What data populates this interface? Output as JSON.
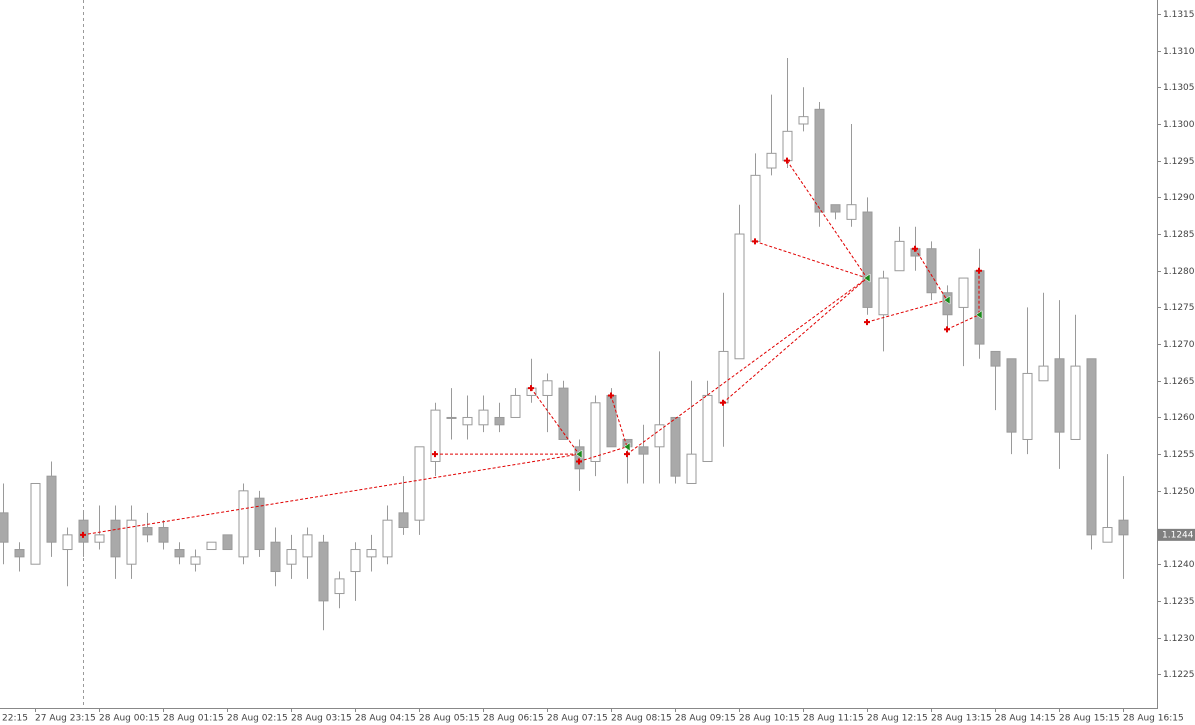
{
  "chart_data": {
    "type": "candlestick",
    "categories": [
      "22:15",
      null,
      null,
      null,
      "27 Aug 23:15",
      null,
      null,
      null,
      "28 Aug 00:15",
      null,
      null,
      null,
      "28 Aug 01:15",
      null,
      null,
      null,
      "28 Aug 02:15",
      null,
      null,
      null,
      "28 Aug 03:15",
      null,
      null,
      null,
      "28 Aug 04:15",
      null,
      null,
      null,
      "28 Aug 05:15",
      null,
      null,
      null,
      "28 Aug 06:15",
      null,
      null,
      null,
      "28 Aug 07:15",
      null,
      null,
      null,
      "28 Aug 08:15",
      null,
      null,
      null,
      "28 Aug 09:15",
      null,
      null,
      null,
      "28 Aug 10:15",
      null,
      null,
      null,
      "28 Aug 11:15",
      null,
      null,
      null,
      "28 Aug 12:15",
      null,
      null,
      null,
      "28 Aug 13:15",
      null,
      null,
      null,
      "28 Aug 14:15",
      null,
      null,
      null,
      "28 Aug 15:15",
      null,
      null,
      null,
      "28 Aug 16:15"
    ],
    "open": [
      null,
      null,
      1.1247,
      1.1242,
      1.124,
      1.1252,
      1.1242,
      1.1246,
      1.1243,
      1.1246,
      1.124,
      1.1245,
      1.1245,
      1.1242,
      1.124,
      1.1242,
      1.1244,
      1.1241,
      1.1249,
      1.1243,
      1.124,
      1.1241,
      1.1243,
      1.1236,
      1.1239,
      1.1241,
      1.1241,
      1.1247,
      1.1246,
      1.1254,
      1.126,
      1.1259,
      1.1259,
      1.126,
      1.126,
      1.1263,
      1.1263,
      1.1264,
      1.1256,
      1.1254,
      1.1263,
      1.1257,
      1.1256,
      1.1256,
      1.126,
      1.1251,
      1.1254,
      1.1262,
      1.1268,
      1.1284,
      1.1294,
      1.1295,
      1.13,
      1.1302,
      1.1289,
      1.1287,
      1.1288,
      1.1274,
      1.128,
      1.1283,
      1.1283,
      1.1277,
      1.1275,
      1.128,
      1.1269,
      1.1268,
      1.1257,
      1.1265,
      1.1268,
      1.1257,
      1.1268,
      1.1243,
      1.1246
    ],
    "high": [
      null,
      null,
      1.1251,
      1.1243,
      1.1251,
      1.1254,
      1.1245,
      1.1247,
      1.1248,
      1.1248,
      1.1248,
      1.1247,
      1.1246,
      1.1243,
      1.1242,
      1.1243,
      1.1244,
      1.1251,
      1.125,
      1.1245,
      1.1244,
      1.1245,
      1.1244,
      1.1239,
      1.1243,
      1.1244,
      1.1248,
      1.1252,
      1.1256,
      1.1262,
      1.1264,
      1.1263,
      1.1263,
      1.1262,
      1.1264,
      1.1268,
      1.1266,
      1.1265,
      1.1257,
      1.1263,
      1.1264,
      1.1257,
      1.1259,
      1.1269,
      1.126,
      1.1265,
      1.1265,
      1.1277,
      1.1289,
      1.1296,
      1.1304,
      1.1309,
      1.1305,
      1.1303,
      1.1289,
      1.13,
      1.129,
      1.128,
      1.1286,
      1.1286,
      1.1284,
      1.1278,
      1.1279,
      1.1283,
      1.1269,
      1.1268,
      1.1275,
      1.1277,
      1.1276,
      1.1274,
      1.1268,
      1.1255,
      1.1252
    ],
    "low": [
      null,
      null,
      1.124,
      1.1239,
      1.124,
      1.1241,
      1.1237,
      1.1241,
      1.1242,
      1.1238,
      1.1238,
      1.1243,
      1.1242,
      1.124,
      1.1239,
      1.1242,
      1.1242,
      1.124,
      1.1241,
      1.1237,
      1.1238,
      1.1238,
      1.1231,
      1.1234,
      1.1235,
      1.1239,
      1.124,
      1.1244,
      1.1244,
      1.1252,
      1.1257,
      1.1257,
      1.1258,
      1.1258,
      1.126,
      1.1262,
      1.1258,
      1.1257,
      1.125,
      1.1252,
      1.1256,
      1.1251,
      1.1251,
      1.1251,
      1.1251,
      1.1251,
      1.1254,
      1.1256,
      1.1268,
      1.1284,
      1.1293,
      1.1294,
      1.1299,
      1.1286,
      1.1287,
      1.1286,
      1.1274,
      1.1269,
      1.128,
      1.128,
      1.1276,
      1.1272,
      1.1267,
      1.1268,
      1.1261,
      1.1255,
      1.1255,
      1.1265,
      1.1253,
      1.1257,
      1.1242,
      1.1243,
      1.1238
    ],
    "close": [
      null,
      null,
      1.1243,
      1.1241,
      1.1251,
      1.1243,
      1.1244,
      1.1243,
      1.1244,
      1.1241,
      1.1246,
      1.1244,
      1.1243,
      1.1241,
      1.1241,
      1.1243,
      1.1242,
      1.125,
      1.1242,
      1.1239,
      1.1242,
      1.1244,
      1.1235,
      1.1238,
      1.1242,
      1.1242,
      1.1246,
      1.1245,
      1.1256,
      1.1261,
      1.126,
      1.126,
      1.1261,
      1.1259,
      1.1263,
      1.1264,
      1.1265,
      1.1257,
      1.1253,
      1.1262,
      1.1256,
      1.1256,
      1.1255,
      1.1259,
      1.1252,
      1.1255,
      1.1263,
      1.1269,
      1.1285,
      1.1293,
      1.1296,
      1.1299,
      1.1301,
      1.1288,
      1.1288,
      1.1289,
      1.1275,
      1.1279,
      1.1284,
      1.1282,
      1.1277,
      1.1274,
      1.1279,
      1.127,
      1.1267,
      1.1258,
      1.1266,
      1.1267,
      1.1258,
      1.1267,
      1.1244,
      1.1245,
      1.1244
    ],
    "up_color": "#ffffff",
    "down_color": "#a9a9a9",
    "wick_color": "#9a9a9a",
    "trade_color": "#e00000",
    "exit_color": "#1a8a1a",
    "trades": [
      {
        "open_index": 7,
        "open_price": 1.1244,
        "close_index": 38,
        "close_price": 1.1255
      },
      {
        "open_index": 29,
        "open_price": 1.1255,
        "close_index": 38,
        "close_price": 1.1255
      },
      {
        "open_index": 35,
        "open_price": 1.1264,
        "close_index": 38,
        "close_price": 1.1255
      },
      {
        "open_index": 38,
        "open_price": 1.1254,
        "close_index": 41,
        "close_price": 1.1256
      },
      {
        "open_index": 40,
        "open_price": 1.1263,
        "close_index": 41,
        "close_price": 1.1256
      },
      {
        "open_index": 41,
        "open_price": 1.1255,
        "close_index": 56,
        "close_price": 1.1279
      },
      {
        "open_index": 47,
        "open_price": 1.1262,
        "close_index": 56,
        "close_price": 1.1279
      },
      {
        "open_index": 49,
        "open_price": 1.1284,
        "close_index": 56,
        "close_price": 1.1279
      },
      {
        "open_index": 51,
        "open_price": 1.1295,
        "close_index": 56,
        "close_price": 1.1279
      },
      {
        "open_index": 56,
        "open_price": 1.1273,
        "close_index": 61,
        "close_price": 1.1276
      },
      {
        "open_index": 59,
        "open_price": 1.1283,
        "close_index": 61,
        "close_price": 1.1276
      },
      {
        "open_index": 61,
        "open_price": 1.1272,
        "close_index": 63,
        "close_price": 1.1274
      },
      {
        "open_index": 63,
        "open_price": 1.128,
        "close_index": 63,
        "close_price": 1.1274
      }
    ],
    "last_price": 1.1244,
    "ylim": [
      1.12204,
      1.13169
    ],
    "yticks": [
      1.1225,
      {
        "value": 1.123,
        "label": "1.1230"
      },
      1.1235,
      {
        "value": 1.124,
        "label": "1.1240"
      },
      {
        "value": 1.125,
        "label": "1.1250"
      },
      1.1255,
      {
        "value": 1.126,
        "label": "1.1260"
      },
      1.1265,
      {
        "value": 1.127,
        "label": "1.1270"
      },
      1.1275,
      {
        "value": 1.128,
        "label": "1.1280"
      },
      1.1285,
      {
        "value": 1.129,
        "label": "1.1290"
      },
      1.1295,
      {
        "value": 1.13,
        "label": "1.1300"
      },
      1.1305,
      {
        "value": 1.131,
        "label": "1.1310"
      },
      1.1315
    ]
  }
}
